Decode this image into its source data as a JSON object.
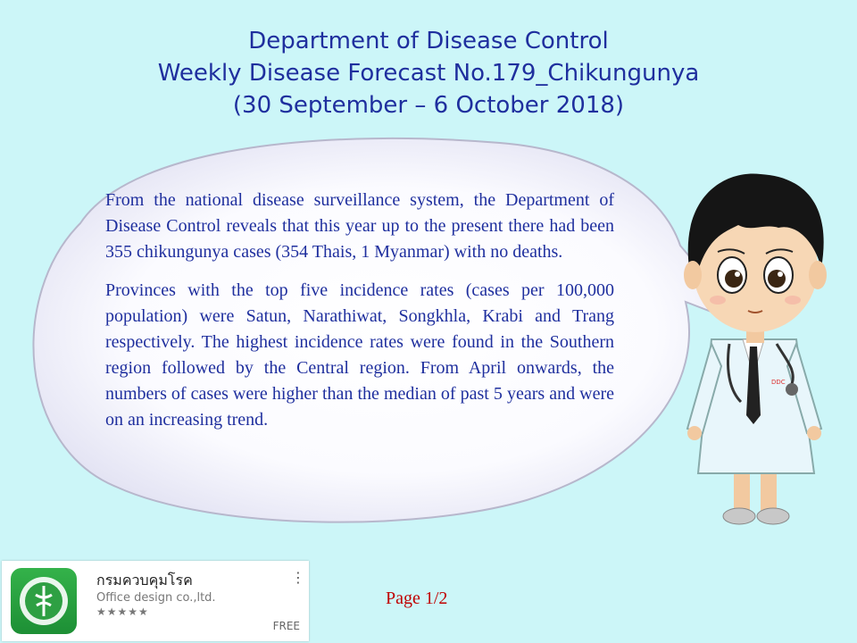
{
  "title": {
    "line1": "Department of Disease Control",
    "line2": "Weekly Disease Forecast No.179_Chikungunya",
    "line3": "(30  September – 6 October 2018)"
  },
  "bubble": {
    "paragraph1": "From the national disease surveillance system, the Department of Disease Control reveals that this year up to the present there had been 355 chikungunya cases (354 Thais, 1 Myanmar) with no deaths.",
    "paragraph2": "Provinces with the top five incidence rates (cases per 100,000 population) were Satun, Narathiwat, Songkhla, Krabi and Trang respectively. The highest incidence rates were found in the Southern region followed by the Central region. From April onwards, the numbers of cases were higher than the median of past 5 years and were on an increasing trend."
  },
  "doctor": {
    "badge": "DDC"
  },
  "app": {
    "name": "กรมควบคุมโรค",
    "developer": "Office design co.,ltd.",
    "rating": "★★★★★",
    "price": "FREE",
    "menu": "⋮"
  },
  "footer": {
    "page": "Page 1/2"
  },
  "colors": {
    "background": "#ccf6f8",
    "title": "#1f2f9e",
    "page_number": "#c00000"
  }
}
